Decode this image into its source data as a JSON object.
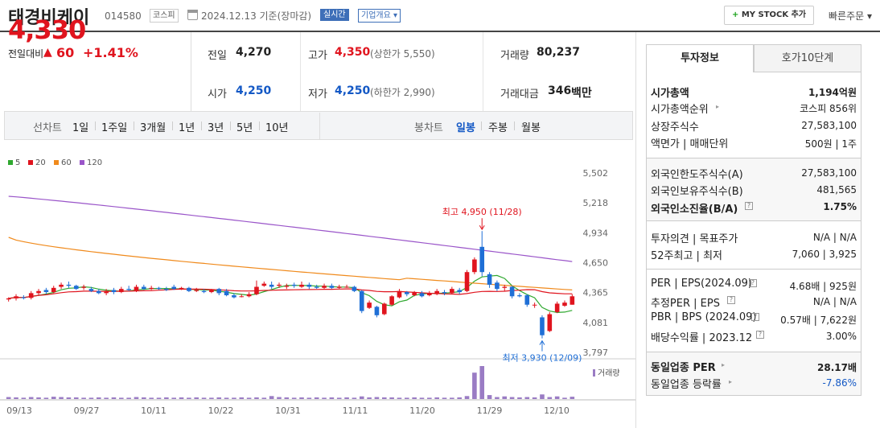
{
  "header": {
    "stock_name": "태경비케이",
    "stock_code": "014580",
    "market_tag": "코스피",
    "date_basis": "2024.12.13 기준(장마감)",
    "realtime_tag": "실시간",
    "company_overview": "기업개요 ▾",
    "my_stock_label": "MY STOCK 추가",
    "quick_order_label": "빠른주문 ▾"
  },
  "price": {
    "current": "4,330",
    "compare_label": "전일대비",
    "change": "60",
    "change_pct": "+1.41%"
  },
  "stats": {
    "prev_label": "전일",
    "prev_value": "4,270",
    "high_label": "고가",
    "high_value": "4,350",
    "upper_limit": "(상한가 5,550)",
    "volume_label": "거래량",
    "volume_value": "80,237",
    "open_label": "시가",
    "open_value": "4,250",
    "low_label": "저가",
    "low_value": "4,250",
    "lower_limit": "(하한가 2,990)",
    "amount_label": "거래대금",
    "amount_value": "346",
    "amount_unit": "백만"
  },
  "periods": {
    "line_label": "선차트",
    "line_items": [
      "1일",
      "1주일",
      "3개월",
      "1년",
      "3년",
      "5년",
      "10년"
    ],
    "candle_label": "봉차트",
    "candle_items": [
      "일봉",
      "주봉",
      "월봉"
    ]
  },
  "right": {
    "tabs": [
      "투자정보",
      "호가10단계"
    ],
    "rows": [
      {
        "k": "시가총액",
        "v": "1,194억원"
      },
      {
        "k": "시가총액순위",
        "v": "코스피 856위"
      },
      {
        "k": "상장주식수",
        "v": "27,583,100"
      },
      {
        "k": "액면가 | 매매단위",
        "v": "500원 | 1주"
      },
      {
        "k": "외국인한도주식수(A)",
        "v": "27,583,100"
      },
      {
        "k": "외국인보유주식수(B)",
        "v": "481,565"
      },
      {
        "k": "외국인소진율(B/A)",
        "v": "1.75%"
      },
      {
        "k": "투자의견 | 목표주가",
        "v": "N/A | N/A"
      },
      {
        "k": "52주최고 | 최저",
        "v": "7,060 | 3,925"
      },
      {
        "k": "PER | EPS(2024.09)",
        "v": "4.68배 | 925원"
      },
      {
        "k": "추정PER | EPS",
        "v": "N/A | N/A"
      },
      {
        "k": "PBR | BPS (2024.09)",
        "v": "0.57배 | 7,622원"
      },
      {
        "k": "배당수익률 | 2023.12",
        "v": "3.00%"
      },
      {
        "k": "동일업종 PER",
        "v": "28.17배"
      },
      {
        "k": "동일업종 등락률",
        "v": "-7.86%"
      }
    ]
  },
  "chart_data": {
    "type": "candlestick",
    "legend": [
      {
        "name": "5",
        "color": "#2fa82f"
      },
      {
        "name": "20",
        "color": "#e0141e"
      },
      {
        "name": "60",
        "color": "#f08a1c"
      },
      {
        "name": "120",
        "color": "#9a55c9"
      }
    ],
    "y_ticks": [
      5502,
      5218,
      4934,
      4650,
      4365,
      4081,
      3797
    ],
    "ylim": [
      3797,
      5502
    ],
    "x_ticks": [
      "09/13",
      "09/27",
      "10/11",
      "10/22",
      "10/31",
      "11/11",
      "11/20",
      "11/29",
      "12/10"
    ],
    "annotation_high": "최고 4,950 (11/28)",
    "annotation_low": "최저 3,930 (12/09)",
    "volume_label": "거래량",
    "candles": [
      {
        "o": 4300,
        "c": 4310,
        "h": 4320,
        "l": 4280
      },
      {
        "o": 4310,
        "c": 4330,
        "h": 4350,
        "l": 4290
      },
      {
        "o": 4320,
        "c": 4315,
        "h": 4340,
        "l": 4300
      },
      {
        "o": 4315,
        "c": 4360,
        "h": 4380,
        "l": 4300
      },
      {
        "o": 4360,
        "c": 4380,
        "h": 4400,
        "l": 4340
      },
      {
        "o": 4390,
        "c": 4370,
        "h": 4410,
        "l": 4350
      },
      {
        "o": 4370,
        "c": 4410,
        "h": 4430,
        "l": 4360
      },
      {
        "o": 4420,
        "c": 4440,
        "h": 4460,
        "l": 4400
      },
      {
        "o": 4440,
        "c": 4430,
        "h": 4470,
        "l": 4410
      },
      {
        "o": 4430,
        "c": 4400,
        "h": 4440,
        "l": 4390
      },
      {
        "o": 4410,
        "c": 4420,
        "h": 4440,
        "l": 4390
      },
      {
        "o": 4400,
        "c": 4380,
        "h": 4420,
        "l": 4370
      },
      {
        "o": 4380,
        "c": 4360,
        "h": 4400,
        "l": 4350
      },
      {
        "o": 4360,
        "c": 4380,
        "h": 4400,
        "l": 4340
      },
      {
        "o": 4390,
        "c": 4370,
        "h": 4410,
        "l": 4350
      },
      {
        "o": 4370,
        "c": 4400,
        "h": 4420,
        "l": 4360
      },
      {
        "o": 4400,
        "c": 4390,
        "h": 4430,
        "l": 4380
      },
      {
        "o": 4380,
        "c": 4420,
        "h": 4440,
        "l": 4370
      },
      {
        "o": 4420,
        "c": 4400,
        "h": 4440,
        "l": 4390
      },
      {
        "o": 4400,
        "c": 4410,
        "h": 4430,
        "l": 4390
      },
      {
        "o": 4410,
        "c": 4400,
        "h": 4420,
        "l": 4390
      },
      {
        "o": 4400,
        "c": 4390,
        "h": 4420,
        "l": 4380
      },
      {
        "o": 4420,
        "c": 4400,
        "h": 4440,
        "l": 4390
      },
      {
        "o": 4400,
        "c": 4410,
        "h": 4420,
        "l": 4390
      },
      {
        "o": 4410,
        "c": 4380,
        "h": 4420,
        "l": 4370
      },
      {
        "o": 4380,
        "c": 4390,
        "h": 4410,
        "l": 4370
      },
      {
        "o": 4380,
        "c": 4370,
        "h": 4400,
        "l": 4360
      },
      {
        "o": 4370,
        "c": 4390,
        "h": 4400,
        "l": 4360
      },
      {
        "o": 4400,
        "c": 4360,
        "h": 4410,
        "l": 4340
      },
      {
        "o": 4380,
        "c": 4340,
        "h": 4400,
        "l": 4330
      },
      {
        "o": 4340,
        "c": 4320,
        "h": 4360,
        "l": 4310
      },
      {
        "o": 4330,
        "c": 4330,
        "h": 4350,
        "l": 4320
      },
      {
        "o": 4330,
        "c": 4350,
        "h": 4370,
        "l": 4320
      },
      {
        "o": 4350,
        "c": 4420,
        "h": 4480,
        "l": 4340
      },
      {
        "o": 4430,
        "c": 4450,
        "h": 4470,
        "l": 4420
      },
      {
        "o": 4440,
        "c": 4420,
        "h": 4470,
        "l": 4400
      },
      {
        "o": 4430,
        "c": 4440,
        "h": 4460,
        "l": 4410
      },
      {
        "o": 4420,
        "c": 4430,
        "h": 4450,
        "l": 4400
      },
      {
        "o": 4440,
        "c": 4430,
        "h": 4460,
        "l": 4410
      },
      {
        "o": 4420,
        "c": 4440,
        "h": 4470,
        "l": 4410
      },
      {
        "o": 4440,
        "c": 4420,
        "h": 4460,
        "l": 4400
      },
      {
        "o": 4420,
        "c": 4410,
        "h": 4440,
        "l": 4400
      },
      {
        "o": 4410,
        "c": 4430,
        "h": 4450,
        "l": 4400
      },
      {
        "o": 4430,
        "c": 4410,
        "h": 4450,
        "l": 4400
      },
      {
        "o": 4410,
        "c": 4420,
        "h": 4440,
        "l": 4400
      },
      {
        "o": 4420,
        "c": 4420,
        "h": 4440,
        "l": 4410
      },
      {
        "o": 4420,
        "c": 4380,
        "h": 4430,
        "l": 4370
      },
      {
        "o": 4380,
        "c": 4190,
        "h": 4390,
        "l": 4170
      },
      {
        "o": 4220,
        "c": 4270,
        "h": 4290,
        "l": 4210
      },
      {
        "o": 4230,
        "c": 4150,
        "h": 4240,
        "l": 4130
      },
      {
        "o": 4160,
        "c": 4260,
        "h": 4270,
        "l": 4150
      },
      {
        "o": 4250,
        "c": 4330,
        "h": 4340,
        "l": 4240
      },
      {
        "o": 4320,
        "c": 4380,
        "h": 4400,
        "l": 4310
      },
      {
        "o": 4370,
        "c": 4350,
        "h": 4380,
        "l": 4330
      },
      {
        "o": 4340,
        "c": 4370,
        "h": 4380,
        "l": 4330
      },
      {
        "o": 4360,
        "c": 4330,
        "h": 4380,
        "l": 4320
      },
      {
        "o": 4340,
        "c": 4360,
        "h": 4380,
        "l": 4330
      },
      {
        "o": 4350,
        "c": 4380,
        "h": 4400,
        "l": 4340
      },
      {
        "o": 4370,
        "c": 4360,
        "h": 4390,
        "l": 4340
      },
      {
        "o": 4360,
        "c": 4400,
        "h": 4420,
        "l": 4350
      },
      {
        "o": 4390,
        "c": 4370,
        "h": 4410,
        "l": 4350
      },
      {
        "o": 4380,
        "c": 4560,
        "h": 4580,
        "l": 4370
      },
      {
        "o": 4560,
        "c": 4680,
        "h": 4700,
        "l": 4540
      },
      {
        "o": 4800,
        "c": 4560,
        "h": 4950,
        "l": 4520
      },
      {
        "o": 4540,
        "c": 4440,
        "h": 4560,
        "l": 4410
      },
      {
        "o": 4460,
        "c": 4400,
        "h": 4480,
        "l": 4380
      },
      {
        "o": 4410,
        "c": 4420,
        "h": 4440,
        "l": 4380
      },
      {
        "o": 4420,
        "c": 4330,
        "h": 4430,
        "l": 4310
      },
      {
        "o": 4340,
        "c": 4330,
        "h": 4360,
        "l": 4320
      },
      {
        "o": 4340,
        "c": 4250,
        "h": 4350,
        "l": 4230
      },
      {
        "o": 4250,
        "c": 4250,
        "h": 4270,
        "l": 4220
      },
      {
        "o": 4130,
        "c": 3960,
        "h": 4150,
        "l": 3930
      },
      {
        "o": 4000,
        "c": 4160,
        "h": 4180,
        "l": 3990
      },
      {
        "o": 4180,
        "c": 4260,
        "h": 4280,
        "l": 4170
      },
      {
        "o": 4240,
        "c": 4270,
        "h": 4290,
        "l": 4230
      },
      {
        "o": 4250,
        "c": 4330,
        "h": 4350,
        "l": 4250
      }
    ],
    "volumes": [
      6,
      5,
      4,
      6,
      5,
      4,
      7,
      6,
      5,
      5,
      4,
      4,
      5,
      4,
      5,
      4,
      4,
      6,
      5,
      4,
      4,
      5,
      4,
      5,
      4,
      5,
      4,
      4,
      5,
      4,
      4,
      5,
      4,
      5,
      4,
      9,
      6,
      5,
      4,
      5,
      4,
      5,
      4,
      5,
      4,
      5,
      4,
      8,
      5,
      6,
      5,
      5,
      4,
      4,
      5,
      4,
      4,
      5,
      4,
      4,
      5,
      9,
      80,
      100,
      12,
      6,
      8,
      6,
      5,
      6,
      5,
      14,
      6,
      8,
      4,
      7
    ]
  }
}
